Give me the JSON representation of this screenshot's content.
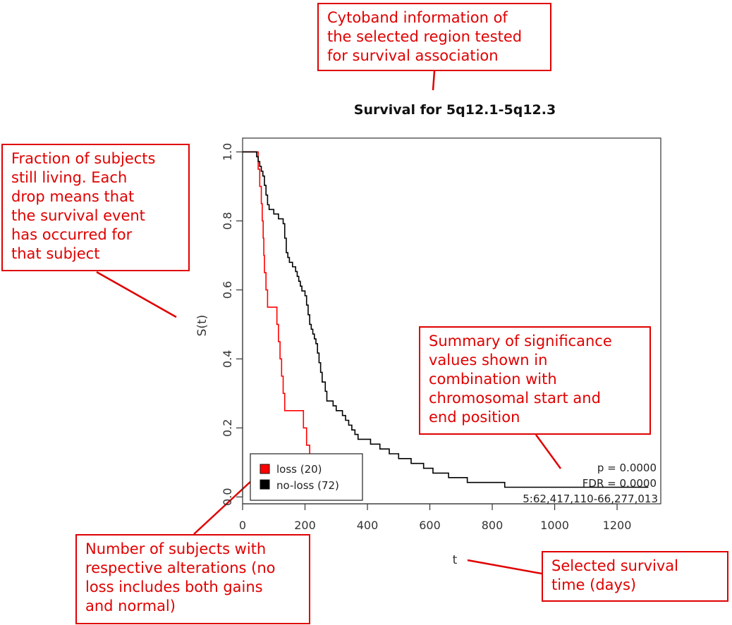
{
  "chart_data": {
    "type": "line",
    "title": "Survival for 5q12.1-5q12.3",
    "xlabel": "t",
    "ylabel": "S(t)",
    "xlim": [
      0,
      1340
    ],
    "ylim": [
      -0.02,
      1.04
    ],
    "x_ticks": [
      0,
      200,
      400,
      600,
      800,
      1000,
      1200
    ],
    "y_ticks": [
      0.0,
      0.2,
      0.4,
      0.6,
      0.8,
      1.0
    ],
    "x_tick_labels": [
      "0",
      "200",
      "400",
      "600",
      "800",
      "1000",
      "1200"
    ],
    "y_tick_labels": [
      "0.0",
      "0.2",
      "0.4",
      "0.6",
      "0.8",
      "1.0"
    ],
    "grid": false,
    "legend_position": "bottom-left",
    "series": [
      {
        "name": "loss (20)",
        "color": "#ff0000",
        "steps": [
          [
            0,
            1.0
          ],
          [
            50,
            0.95
          ],
          [
            55,
            0.9
          ],
          [
            60,
            0.85
          ],
          [
            63,
            0.8
          ],
          [
            66,
            0.75
          ],
          [
            68,
            0.7
          ],
          [
            70,
            0.65
          ],
          [
            75,
            0.6
          ],
          [
            80,
            0.55
          ],
          [
            110,
            0.5
          ],
          [
            115,
            0.45
          ],
          [
            120,
            0.4
          ],
          [
            125,
            0.35
          ],
          [
            130,
            0.3
          ],
          [
            135,
            0.25
          ],
          [
            195,
            0.2
          ],
          [
            205,
            0.15
          ],
          [
            215,
            0.1
          ],
          [
            225,
            0.05
          ]
        ],
        "end": 225
      },
      {
        "name": "no-loss (72)",
        "color": "#000000",
        "steps": [
          [
            0,
            1.0
          ],
          [
            45,
            0.986
          ],
          [
            50,
            0.972
          ],
          [
            55,
            0.958
          ],
          [
            60,
            0.944
          ],
          [
            65,
            0.93
          ],
          [
            70,
            0.903
          ],
          [
            75,
            0.875
          ],
          [
            80,
            0.847
          ],
          [
            85,
            0.833
          ],
          [
            100,
            0.82
          ],
          [
            115,
            0.806
          ],
          [
            130,
            0.792
          ],
          [
            135,
            0.75
          ],
          [
            140,
            0.708
          ],
          [
            145,
            0.694
          ],
          [
            150,
            0.68
          ],
          [
            160,
            0.667
          ],
          [
            170,
            0.653
          ],
          [
            175,
            0.639
          ],
          [
            180,
            0.625
          ],
          [
            185,
            0.611
          ],
          [
            190,
            0.597
          ],
          [
            200,
            0.583
          ],
          [
            205,
            0.556
          ],
          [
            210,
            0.528
          ],
          [
            215,
            0.5
          ],
          [
            220,
            0.486
          ],
          [
            225,
            0.472
          ],
          [
            230,
            0.458
          ],
          [
            235,
            0.444
          ],
          [
            240,
            0.417
          ],
          [
            245,
            0.389
          ],
          [
            250,
            0.361
          ],
          [
            255,
            0.333
          ],
          [
            265,
            0.306
          ],
          [
            270,
            0.278
          ],
          [
            290,
            0.264
          ],
          [
            300,
            0.25
          ],
          [
            320,
            0.236
          ],
          [
            330,
            0.222
          ],
          [
            340,
            0.208
          ],
          [
            350,
            0.194
          ],
          [
            360,
            0.181
          ],
          [
            370,
            0.167
          ],
          [
            410,
            0.153
          ],
          [
            440,
            0.139
          ],
          [
            470,
            0.125
          ],
          [
            500,
            0.111
          ],
          [
            540,
            0.097
          ],
          [
            580,
            0.083
          ],
          [
            610,
            0.069
          ],
          [
            660,
            0.056
          ],
          [
            720,
            0.042
          ],
          [
            840,
            0.028
          ]
        ],
        "end": 1300
      }
    ],
    "annotations": {
      "p_label": "p =  0.0000",
      "fdr_label": "FDR =  0.0000",
      "position": "5:62,417,110-66,277,013"
    }
  },
  "callouts": {
    "cytoband": "Cytoband information of\nthe selected region tested\nfor survival association",
    "fraction": "Fraction of subjects\nstill living. Each\ndrop means that\nthe survival event\nhas occurred for\nthat subject",
    "summary": "Summary of significance\nvalues shown in\ncombination with\nchromosomal start and\nend position",
    "number": "Number of subjects with\nrespective alterations (no\nloss includes both gains\nand normal)",
    "time": "Selected survival\ntime (days)"
  },
  "colors": {
    "callout": "#e00000",
    "loss": "#ff0000",
    "noloss": "#000000"
  }
}
